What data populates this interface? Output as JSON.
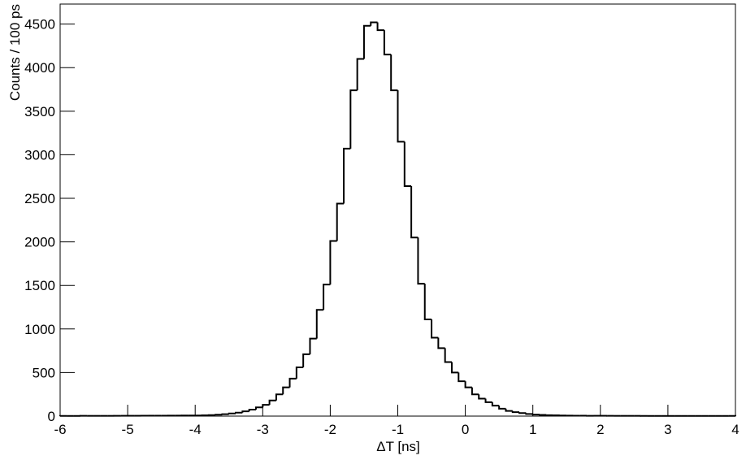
{
  "chart_data": {
    "type": "histogram",
    "xlabel": "ΔT [ns]",
    "ylabel": "Counts / 100 ps",
    "bins": [
      -6,
      -5.9,
      -5.8,
      -5.7,
      -5.6,
      -5.5,
      -5.4,
      -5.3,
      -5.2,
      -5.1,
      -5,
      -4.9,
      -4.8,
      -4.7,
      -4.6,
      -4.5,
      -4.4,
      -4.3,
      -4.2,
      -4.1,
      -4,
      -3.9,
      -3.8,
      -3.7,
      -3.6,
      -3.5,
      -3.4,
      -3.3,
      -3.2,
      -3.1,
      -3,
      -2.9,
      -2.8,
      -2.7,
      -2.6,
      -2.5,
      -2.4,
      -2.3,
      -2.2,
      -2.1,
      -2,
      -1.9,
      -1.8,
      -1.7,
      -1.6,
      -1.5,
      -1.4,
      -1.3,
      -1.2,
      -1.1,
      -1,
      -0.9,
      -0.8,
      -0.7,
      -0.6,
      -0.5,
      -0.4,
      -0.3,
      -0.2,
      -0.1,
      0,
      0.1,
      0.2,
      0.3,
      0.4,
      0.5,
      0.6,
      0.7,
      0.8,
      0.9,
      1,
      1.1,
      1.2,
      1.3,
      1.4,
      1.5,
      1.6,
      1.7,
      1.8,
      1.9,
      2,
      2.1,
      2.2,
      2.3,
      2.4,
      2.5,
      2.6,
      2.7,
      2.8,
      2.9,
      3,
      3.1,
      3.2,
      3.3,
      3.4,
      3.5,
      3.6,
      3.7,
      3.8,
      3.9,
      4
    ],
    "values": [
      2,
      2,
      2,
      3,
      3,
      3,
      3,
      3,
      4,
      4,
      4,
      4,
      5,
      5,
      5,
      5,
      6,
      6,
      7,
      7,
      7,
      9,
      12,
      16,
      22,
      30,
      40,
      55,
      75,
      100,
      130,
      180,
      250,
      330,
      430,
      560,
      710,
      890,
      1220,
      1510,
      2010,
      2440,
      3070,
      3740,
      4100,
      4480,
      4520,
      4430,
      4150,
      3740,
      3150,
      2640,
      2050,
      1520,
      1110,
      900,
      780,
      620,
      500,
      400,
      330,
      250,
      200,
      160,
      120,
      85,
      60,
      45,
      35,
      25,
      18,
      14,
      11,
      9,
      7,
      6,
      5,
      5,
      4,
      4,
      4,
      3,
      3,
      3,
      3,
      3,
      2,
      2,
      2,
      2,
      2,
      2,
      2,
      2,
      2,
      2,
      2,
      2,
      2,
      2
    ],
    "color": "#000000",
    "xlim": [
      -6,
      4
    ],
    "ylim": [
      0,
      4730
    ],
    "xticks": [
      -6,
      -5,
      -4,
      -3,
      -2,
      -1,
      0,
      1,
      2,
      3,
      4
    ],
    "yticks": [
      0,
      500,
      1000,
      1500,
      2000,
      2500,
      3000,
      3500,
      4000,
      4500
    ],
    "grid": false
  }
}
